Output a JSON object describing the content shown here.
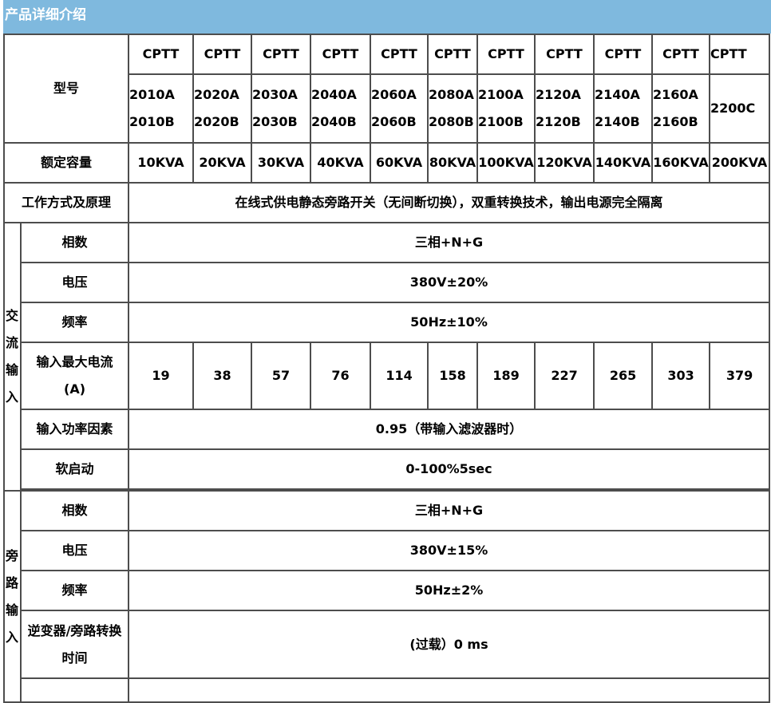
{
  "header": {
    "title": "产品详细介绍"
  },
  "table": {
    "model_label": "型号",
    "series_prefix": [
      "CPTT",
      "CPTT",
      "CPTT",
      "CPTT",
      "CPTT",
      "CPTT",
      "CPTT",
      "CPTT",
      "CPTT",
      "CPTT",
      "CPTT"
    ],
    "models_a": [
      "2010A",
      "2020A",
      "2030A",
      "2040A",
      "2060A",
      "2080A",
      "2100A",
      "2120A",
      "2140A",
      "2160A",
      "2200C"
    ],
    "models_b": [
      "2010B",
      "2020B",
      "2030B",
      "2040B",
      "2060B",
      "2080B",
      "2100B",
      "2120B",
      "2140B",
      "2160B",
      ""
    ],
    "capacity_label": "额定容量",
    "capacities": [
      "10KVA",
      "20KVA",
      "30KVA",
      "40KVA",
      "60KVA",
      "80KVA",
      "100KVA",
      "120KVA",
      "140KVA",
      "160KVA",
      "200KVA"
    ],
    "mode_label": "工作方式及原理",
    "mode_value": "在线式供电静态旁路开关（无间断切换），双重转换技术，输出电源完全隔离",
    "ac_input": {
      "group_label": [
        "交",
        "流",
        "输",
        "入"
      ],
      "phase_label": "相数",
      "phase_value": "三相+N+G",
      "voltage_label": "电压",
      "voltage_value": "380V±20%",
      "freq_label": "频率",
      "freq_value": "50Hz±10%",
      "max_current_label": [
        "输入最大电流",
        "(A)"
      ],
      "max_current": [
        "19",
        "38",
        "57",
        "76",
        "114",
        "158",
        "189",
        "227",
        "265",
        "303",
        "379"
      ],
      "pf_label": "输入功率因素",
      "pf_value": "0.95（带输入滤波器时）",
      "soft_start_label": "软启动",
      "soft_start_value": "0-100%5sec"
    },
    "bypass_input": {
      "group_label": [
        "旁",
        "路",
        "输",
        "入"
      ],
      "phase_label": "相数",
      "phase_value": "三相+N+G",
      "voltage_label": "电压",
      "voltage_value": "380V±15%",
      "freq_label": "频率",
      "freq_value": "50Hz±2%",
      "transfer_label": [
        "逆变器/旁路转换",
        "时间"
      ],
      "transfer_value": "(过载）0 ms"
    }
  }
}
